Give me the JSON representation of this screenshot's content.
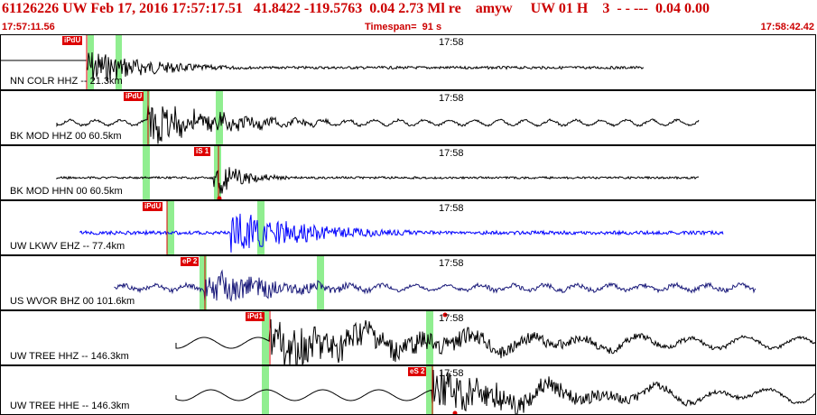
{
  "header": {
    "title": "61126226 UW Feb 17, 2016 17:57:17.51   41.8422 -119.5763  0.04 2.73 Ml re    amyw     UW 01 H    3  - - ---  0.04 0.00",
    "start_time": "17:57:11.56",
    "timespan": "Timespan=  91 s",
    "end_time": "17:58:42.42"
  },
  "colors": {
    "header_text": "#cc0000",
    "pick_flag": "#dd0000",
    "pick_window": "#90ee90",
    "trace_black": "#000000",
    "trace_blue": "#0000ff",
    "trace_navy": "#1a1a7a"
  },
  "panels": [
    {
      "label": "NN COLR HHZ -- 21.3km",
      "minute_label": "17:58",
      "pick": "iPdU",
      "trace_color": "#000000"
    },
    {
      "label": "BK MOD HHZ 00 60.5km",
      "minute_label": "17:58",
      "pick": "iPdU",
      "trace_color": "#000000"
    },
    {
      "label": "BK MOD HHN 00 60.5km",
      "minute_label": "17:58",
      "pick": "iS 1",
      "trace_color": "#000000"
    },
    {
      "label": "UW LKWV EHZ -- 77.4km",
      "minute_label": "17:58",
      "pick": "iPdU",
      "trace_color": "#0000ff"
    },
    {
      "label": "US WVOR BHZ 00 101.6km",
      "minute_label": "17:58",
      "pick": "eP 2",
      "trace_color": "#1a1a7a"
    },
    {
      "label": "UW TREE HHZ -- 146.3km",
      "minute_label": "17:58",
      "pick": "iPd1",
      "trace_color": "#000000"
    },
    {
      "label": "UW TREE HHE -- 146.3km",
      "minute_label": "17:58",
      "pick": "eS 2",
      "trace_color": "#000000"
    }
  ]
}
